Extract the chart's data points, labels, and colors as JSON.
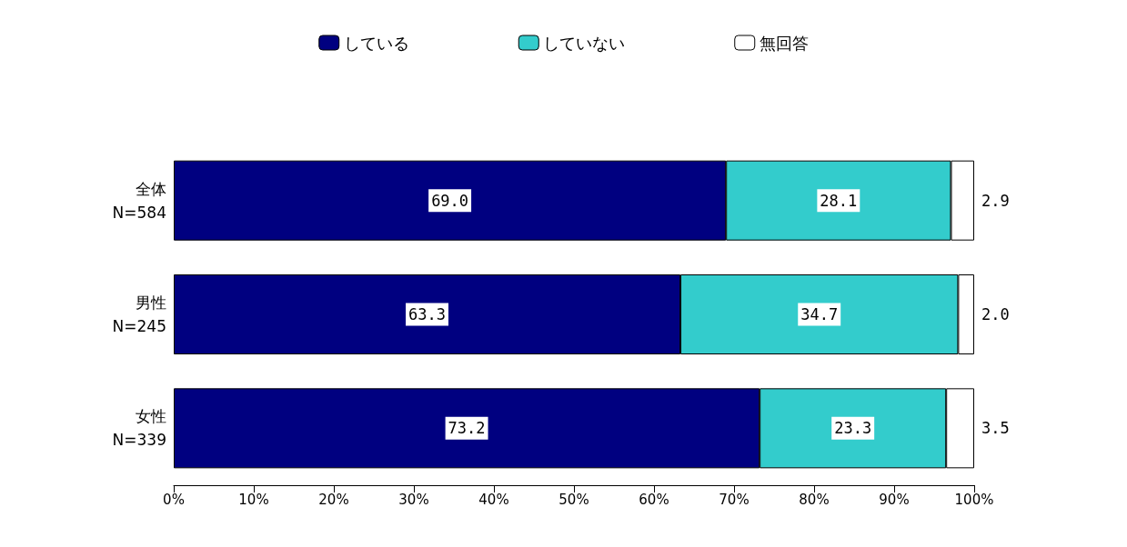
{
  "chart_data": {
    "type": "bar",
    "orientation": "horizontal",
    "stacked": true,
    "legend": "top",
    "grid": false,
    "categories": [
      "全体\nN=584",
      "男性\nN=245",
      "女性\nN=339"
    ],
    "series": [
      {
        "name": "している",
        "color": "#000080",
        "values": [
          69.0,
          63.3,
          73.2
        ],
        "value_labels": [
          "69.0",
          "63.3",
          "73.2"
        ]
      },
      {
        "name": "していない",
        "color": "#33cccc",
        "values": [
          28.1,
          34.7,
          23.3
        ],
        "value_labels": [
          "28.1",
          "34.7",
          "23.3"
        ]
      },
      {
        "name": "無回答",
        "color": "#ffffff",
        "values": [
          2.9,
          2.0,
          3.5
        ],
        "value_labels": [
          "2.9",
          "2.0",
          "3.5"
        ]
      }
    ],
    "xlim": [
      0,
      100
    ],
    "xticks": [
      {
        "value": 0,
        "label": "0%"
      },
      {
        "value": 10,
        "label": "10%"
      },
      {
        "value": 20,
        "label": "20%"
      },
      {
        "value": 30,
        "label": "30%"
      },
      {
        "value": 40,
        "label": "40%"
      },
      {
        "value": 50,
        "label": "50%"
      },
      {
        "value": 60,
        "label": "60%"
      },
      {
        "value": 70,
        "label": "70%"
      },
      {
        "value": 80,
        "label": "80%"
      },
      {
        "value": 90,
        "label": "90%"
      },
      {
        "value": 100,
        "label": "100%"
      }
    ]
  }
}
